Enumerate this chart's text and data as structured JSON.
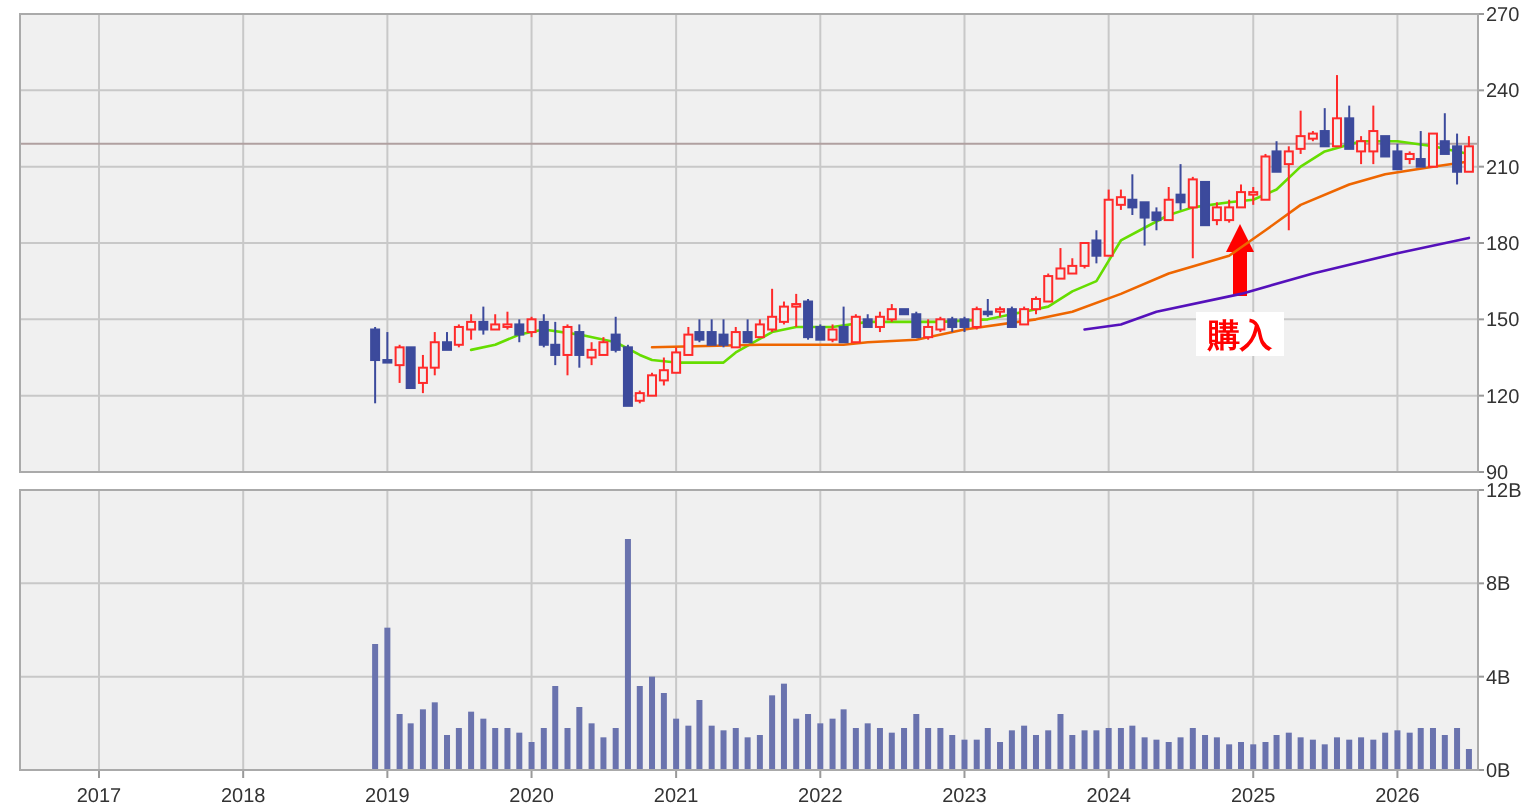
{
  "chart_data": [
    {
      "type": "candlestick",
      "x": [
        "2018-12",
        "2019-01",
        "2019-02",
        "2019-03",
        "2019-04",
        "2019-05",
        "2019-06",
        "2019-07",
        "2019-08",
        "2019-09",
        "2019-10",
        "2019-11",
        "2019-12",
        "2020-01",
        "2020-02",
        "2020-03",
        "2020-04",
        "2020-05",
        "2020-06",
        "2020-07",
        "2020-08",
        "2020-09",
        "2020-10",
        "2020-11",
        "2020-12",
        "2021-01",
        "2021-02",
        "2021-03",
        "2021-04",
        "2021-05",
        "2021-06",
        "2021-07",
        "2021-08",
        "2021-09",
        "2021-10",
        "2021-11",
        "2021-12",
        "2022-01",
        "2022-02",
        "2022-03",
        "2022-04",
        "2022-05",
        "2022-06",
        "2022-07",
        "2022-08",
        "2022-09",
        "2022-10",
        "2022-11",
        "2022-12",
        "2023-01",
        "2023-02",
        "2023-03",
        "2023-04",
        "2023-05",
        "2023-06",
        "2023-07",
        "2023-08",
        "2023-09",
        "2023-10",
        "2023-11",
        "2023-12",
        "2024-01",
        "2024-02",
        "2024-03",
        "2024-04",
        "2024-05",
        "2024-06",
        "2024-07",
        "2024-08",
        "2024-09",
        "2024-10",
        "2024-11",
        "2024-12",
        "2025-01",
        "2025-02",
        "2025-03",
        "2025-04",
        "2025-05",
        "2025-06",
        "2025-07",
        "2025-08",
        "2025-09",
        "2025-10",
        "2025-11",
        "2025-12",
        "2026-01",
        "2026-02",
        "2026-03",
        "2026-04",
        "2026-05",
        "2026-06",
        "2026-07"
      ],
      "ohlc": [
        [
          146,
          147,
          117,
          134
        ],
        [
          134,
          145,
          133,
          133
        ],
        [
          132,
          140,
          125,
          139
        ],
        [
          139,
          139,
          123,
          123
        ],
        [
          125,
          136,
          121,
          131
        ],
        [
          131,
          145,
          128,
          141
        ],
        [
          141,
          145,
          138,
          138
        ],
        [
          140,
          148,
          139,
          147
        ],
        [
          146,
          152,
          142,
          149
        ],
        [
          149,
          155,
          144,
          146
        ],
        [
          146,
          152,
          146,
          148
        ],
        [
          147,
          153,
          146,
          148
        ],
        [
          148,
          150,
          141,
          144
        ],
        [
          145,
          151,
          143,
          150
        ],
        [
          149,
          152,
          139,
          140
        ],
        [
          140,
          149,
          132,
          136
        ],
        [
          136,
          148,
          128,
          147
        ],
        [
          145,
          148,
          131,
          136
        ],
        [
          135,
          141,
          132,
          138
        ],
        [
          136,
          143,
          136,
          141
        ],
        [
          144,
          151,
          137,
          138
        ],
        [
          139,
          140,
          116,
          116
        ],
        [
          118,
          122,
          117,
          121
        ],
        [
          120,
          129,
          120,
          128
        ],
        [
          126,
          135,
          124,
          130
        ],
        [
          129,
          139,
          129,
          137
        ],
        [
          136,
          147,
          136,
          144
        ],
        [
          145,
          150,
          141,
          142
        ],
        [
          145,
          150,
          140,
          140
        ],
        [
          144,
          150,
          139,
          140
        ],
        [
          139,
          147,
          139,
          145
        ],
        [
          145,
          150,
          141,
          141
        ],
        [
          143,
          150,
          143,
          148
        ],
        [
          146,
          162,
          145,
          151
        ],
        [
          149,
          157,
          148,
          155
        ],
        [
          155,
          160,
          147,
          156
        ],
        [
          157,
          158,
          142,
          143
        ],
        [
          147,
          148,
          142,
          142
        ],
        [
          142,
          148,
          141,
          146
        ],
        [
          147,
          155,
          141,
          141
        ],
        [
          141,
          152,
          141,
          151
        ],
        [
          150,
          152,
          147,
          147
        ],
        [
          147,
          153,
          145,
          151
        ],
        [
          150,
          156,
          149,
          154
        ],
        [
          154,
          154,
          152,
          152
        ],
        [
          152,
          153,
          143,
          143
        ],
        [
          143,
          150,
          142,
          147
        ],
        [
          146,
          151,
          145,
          150
        ],
        [
          150,
          151,
          145,
          147
        ],
        [
          150,
          151,
          145,
          147
        ],
        [
          147,
          155,
          146,
          154
        ],
        [
          153,
          158,
          151,
          152
        ],
        [
          153,
          155,
          151,
          154
        ],
        [
          154,
          155,
          147,
          147
        ],
        [
          148,
          155,
          148,
          154
        ],
        [
          154,
          159,
          152,
          158
        ],
        [
          157,
          168,
          157,
          167
        ],
        [
          166,
          178,
          166,
          170
        ],
        [
          168,
          174,
          168,
          171
        ],
        [
          171,
          180,
          170,
          180
        ],
        [
          181,
          185,
          172,
          175
        ],
        [
          175,
          201,
          175,
          197
        ],
        [
          195,
          201,
          193,
          198
        ],
        [
          197,
          207,
          191,
          194
        ],
        [
          196,
          196,
          179,
          190
        ],
        [
          192,
          194,
          185,
          189
        ],
        [
          189,
          202,
          189,
          197
        ],
        [
          199,
          211,
          193,
          196
        ],
        [
          194,
          206,
          174,
          205
        ],
        [
          204,
          204,
          187,
          187
        ],
        [
          189,
          196,
          187,
          194
        ],
        [
          189,
          197,
          188,
          194
        ],
        [
          194,
          203,
          194,
          200
        ],
        [
          199,
          202,
          195,
          200
        ],
        [
          197,
          215,
          197,
          214
        ],
        [
          216,
          220,
          208,
          208
        ],
        [
          211,
          218,
          185,
          216
        ],
        [
          217,
          232,
          215,
          222
        ],
        [
          221,
          224,
          220,
          223
        ],
        [
          224,
          233,
          218,
          218
        ],
        [
          218,
          246,
          218,
          229
        ],
        [
          229,
          234,
          217,
          217
        ],
        [
          216,
          222,
          211,
          220
        ],
        [
          216,
          234,
          211,
          224
        ],
        [
          222,
          222,
          214,
          214
        ],
        [
          216,
          219,
          209,
          209
        ],
        [
          213,
          216,
          211,
          215
        ],
        [
          213,
          224,
          210,
          210
        ],
        [
          210,
          223,
          210,
          223
        ],
        [
          220,
          231,
          215,
          215
        ],
        [
          218,
          223,
          203,
          208
        ],
        [
          208,
          222,
          208,
          218
        ]
      ],
      "series": [
        {
          "type": "line",
          "color": "#66dd00",
          "x": [
            "2019-08",
            "2019-10",
            "2019-12",
            "2020-02",
            "2020-05",
            "2020-08",
            "2020-10",
            "2020-11",
            "2021-01",
            "2021-05",
            "2021-06",
            "2021-09",
            "2021-11",
            "2022-02",
            "2022-05",
            "2022-11",
            "2023-03",
            "2023-06",
            "2023-08",
            "2023-10",
            "2023-12",
            "2024-01",
            "2024-02",
            "2024-04",
            "2024-06",
            "2024-08",
            "2024-11",
            "2025-01",
            "2025-03",
            "2025-05",
            "2025-07",
            "2025-10",
            "2026-01",
            "2026-04",
            "2026-07"
          ],
          "values": [
            138,
            140,
            144,
            146,
            144,
            141,
            136,
            134,
            133,
            133,
            137,
            145,
            147,
            147,
            149,
            149,
            150,
            153,
            155,
            161,
            165,
            173,
            181,
            186,
            191,
            194,
            196,
            197,
            201,
            210,
            216,
            220,
            220,
            218,
            215
          ]
        },
        {
          "type": "line",
          "color": "#ee6600",
          "x": [
            "2020-11",
            "2021-08",
            "2022-03",
            "2022-05",
            "2022-09",
            "2023-01",
            "2023-07",
            "2023-10",
            "2024-02",
            "2024-06",
            "2024-11",
            "2025-02",
            "2025-05",
            "2025-09",
            "2025-12",
            "2026-04",
            "2026-07"
          ],
          "values": [
            139,
            140,
            140,
            141,
            142,
            146,
            150,
            153,
            160,
            168,
            175,
            185,
            195,
            203,
            207,
            210,
            212
          ]
        },
        {
          "type": "line",
          "color": "#5511bb",
          "x": [
            "2023-11",
            "2024-02",
            "2024-05",
            "2024-12",
            "2025-06",
            "2026-01",
            "2026-07"
          ],
          "values": [
            146,
            148,
            153,
            160,
            168,
            176,
            182
          ]
        }
      ],
      "ref_lines": [
        {
          "axis": "y",
          "value": 219,
          "color": "#b0a0a0"
        }
      ],
      "annotations": [
        "購入"
      ],
      "xlim": [
        "2016-06-15",
        "2026-07-24"
      ],
      "xticks": [
        "2017",
        "2018",
        "2019",
        "2020",
        "2021",
        "2022",
        "2023",
        "2024",
        "2025",
        "2026"
      ],
      "ylim": [
        90,
        270
      ],
      "yticks": [
        90,
        120,
        150,
        180,
        210,
        240,
        270
      ],
      "grid": true,
      "tick_labels": "y"
    },
    {
      "type": "bar",
      "color": "#6a73ae",
      "x": [
        "2018-12",
        "2019-01",
        "2019-02",
        "2019-03",
        "2019-04",
        "2019-05",
        "2019-06",
        "2019-07",
        "2019-08",
        "2019-09",
        "2019-10",
        "2019-11",
        "2019-12",
        "2020-01",
        "2020-02",
        "2020-03",
        "2020-04",
        "2020-05",
        "2020-06",
        "2020-07",
        "2020-08",
        "2020-09",
        "2020-10",
        "2020-11",
        "2020-12",
        "2021-01",
        "2021-02",
        "2021-03",
        "2021-04",
        "2021-05",
        "2021-06",
        "2021-07",
        "2021-08",
        "2021-09",
        "2021-10",
        "2021-11",
        "2021-12",
        "2022-01",
        "2022-02",
        "2022-03",
        "2022-04",
        "2022-05",
        "2022-06",
        "2022-07",
        "2022-08",
        "2022-09",
        "2022-10",
        "2022-11",
        "2022-12",
        "2023-01",
        "2023-02",
        "2023-03",
        "2023-04",
        "2023-05",
        "2023-06",
        "2023-07",
        "2023-08",
        "2023-09",
        "2023-10",
        "2023-11",
        "2023-12",
        "2024-01",
        "2024-02",
        "2024-03",
        "2024-04",
        "2024-05",
        "2024-06",
        "2024-07",
        "2024-08",
        "2024-09",
        "2024-10",
        "2024-11",
        "2024-12",
        "2025-01",
        "2025-02",
        "2025-03",
        "2025-04",
        "2025-05",
        "2025-06",
        "2025-07",
        "2025-08",
        "2025-09",
        "2025-10",
        "2025-11",
        "2025-12",
        "2026-01",
        "2026-02",
        "2026-03",
        "2026-04",
        "2026-05",
        "2026-06",
        "2026-07"
      ],
      "values": [
        5.4,
        6.1,
        2.4,
        2.0,
        2.6,
        2.9,
        1.5,
        1.8,
        2.5,
        2.2,
        1.8,
        1.8,
        1.6,
        1.2,
        1.8,
        3.6,
        1.8,
        2.7,
        2.0,
        1.4,
        1.8,
        9.9,
        3.6,
        4.0,
        3.3,
        2.2,
        1.9,
        3.0,
        1.9,
        1.7,
        1.8,
        1.4,
        1.5,
        3.2,
        3.7,
        2.2,
        2.4,
        2.0,
        2.2,
        2.6,
        1.8,
        2.0,
        1.8,
        1.6,
        1.8,
        2.4,
        1.8,
        1.8,
        1.5,
        1.3,
        1.3,
        1.8,
        1.2,
        1.7,
        1.9,
        1.5,
        1.7,
        2.4,
        1.5,
        1.7,
        1.7,
        1.8,
        1.8,
        1.9,
        1.4,
        1.3,
        1.2,
        1.4,
        1.8,
        1.5,
        1.4,
        1.1,
        1.2,
        1.1,
        1.2,
        1.5,
        1.6,
        1.4,
        1.3,
        1.1,
        1.4,
        1.3,
        1.4,
        1.3,
        1.6,
        1.7,
        1.6,
        1.8,
        1.8,
        1.5,
        1.8,
        0.9
      ],
      "xlim": [
        "2016-06-15",
        "2026-07-24"
      ],
      "xticks": [
        "2017",
        "2018",
        "2019",
        "2020",
        "2021",
        "2022",
        "2023",
        "2024",
        "2025",
        "2026"
      ],
      "ylim": [
        0,
        12
      ],
      "yticks": [
        {
          "value": 0,
          "label": "0B"
        },
        {
          "value": 4,
          "label": "4B"
        },
        {
          "value": 8,
          "label": "8B"
        },
        {
          "value": 12,
          "label": "12B"
        }
      ],
      "grid": true
    }
  ]
}
